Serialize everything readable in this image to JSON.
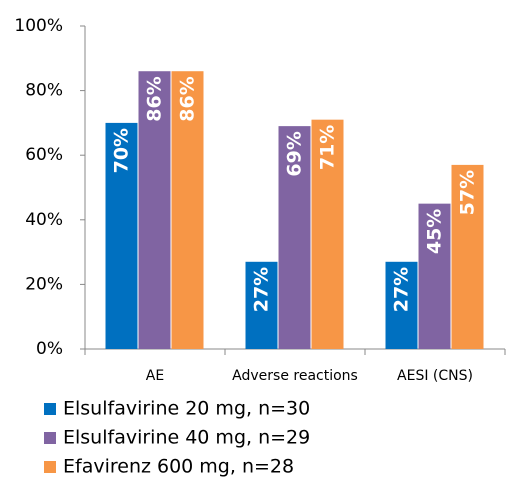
{
  "chart_data": {
    "type": "bar",
    "categories": [
      "AE",
      "Adverse reactions",
      "AESI (CNS)"
    ],
    "series": [
      {
        "name": "Elsulfavirine 20 mg, n=30",
        "color": "#0070c0",
        "values": [
          70,
          27,
          27
        ],
        "value_labels": [
          "70%",
          "27%",
          "27%"
        ]
      },
      {
        "name": "Elsulfavirine 40 mg, n=29",
        "color": "#8064a2",
        "values": [
          86,
          69,
          45
        ],
        "value_labels": [
          "86%",
          "69%",
          "45%"
        ]
      },
      {
        "name": "Efavirenz 600 mg, n=28",
        "color": "#f79646",
        "values": [
          86,
          71,
          57
        ],
        "value_labels": [
          "86%",
          "71%",
          "57%"
        ]
      }
    ],
    "ylim": [
      0,
      100
    ],
    "yticks": [
      {
        "value": 0,
        "label": "0%"
      },
      {
        "value": 20,
        "label": "20%"
      },
      {
        "value": 40,
        "label": "40%"
      },
      {
        "value": 60,
        "label": "60%"
      },
      {
        "value": 80,
        "label": "80%"
      },
      {
        "value": 100,
        "label": "100%"
      }
    ],
    "legend": "bottom"
  }
}
